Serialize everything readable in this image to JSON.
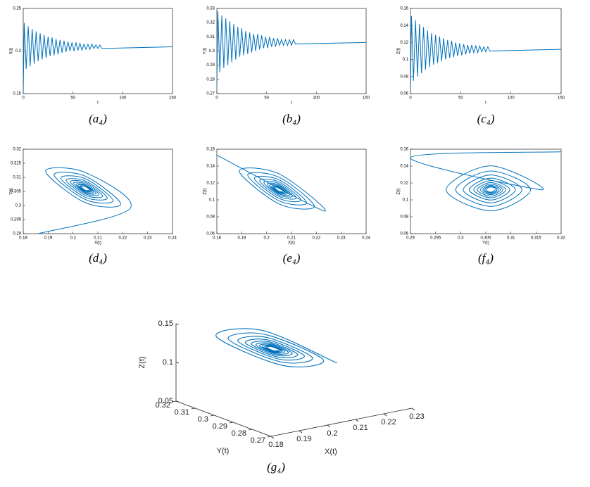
{
  "chart_data": [
    {
      "type": "line",
      "caption": "(a₄)",
      "xlabel": "t",
      "ylabel": "X(t)",
      "color": "#0072bd",
      "smooth": false,
      "xlim": [
        0,
        150
      ],
      "xticks": [
        0,
        50,
        100,
        150
      ],
      "ylim": [
        0.15,
        0.25
      ],
      "yticks": [
        0.15,
        0.2,
        0.25
      ],
      "x": [
        0,
        1,
        3,
        5,
        7,
        9,
        11,
        13,
        15,
        17,
        19,
        21,
        23,
        25,
        27,
        29,
        31,
        33,
        35,
        37,
        39,
        41,
        43,
        45,
        47,
        49,
        51,
        53,
        55,
        57,
        59,
        61,
        63,
        65,
        67,
        69,
        71,
        73,
        75,
        77,
        79,
        150
      ],
      "values": [
        0.15,
        0.233,
        0.179,
        0.229,
        0.182,
        0.226,
        0.185,
        0.223,
        0.188,
        0.221,
        0.19,
        0.219,
        0.192,
        0.217,
        0.194,
        0.216,
        0.195,
        0.214,
        0.196,
        0.213,
        0.198,
        0.212,
        0.199,
        0.211,
        0.2,
        0.21,
        0.2,
        0.21,
        0.201,
        0.209,
        0.201,
        0.208,
        0.202,
        0.208,
        0.202,
        0.208,
        0.203,
        0.207,
        0.203,
        0.207,
        0.203,
        0.205
      ]
    },
    {
      "type": "line",
      "caption": "(b₄)",
      "xlabel": "t",
      "ylabel": "Y(t)",
      "color": "#0072bd",
      "smooth": false,
      "xlim": [
        0,
        150
      ],
      "xticks": [
        0,
        50,
        100,
        150
      ],
      "ylim": [
        0.27,
        0.33
      ],
      "yticks": [
        0.27,
        0.28,
        0.29,
        0.3,
        0.31,
        0.32,
        0.33
      ],
      "x": [
        0,
        1,
        3,
        5,
        7,
        9,
        11,
        13,
        15,
        17,
        19,
        21,
        23,
        25,
        27,
        29,
        31,
        33,
        35,
        37,
        39,
        41,
        43,
        45,
        47,
        49,
        51,
        53,
        55,
        57,
        59,
        61,
        63,
        65,
        67,
        69,
        71,
        73,
        75,
        77,
        79,
        150
      ],
      "values": [
        0.275,
        0.328,
        0.285,
        0.325,
        0.288,
        0.323,
        0.29,
        0.321,
        0.292,
        0.319,
        0.294,
        0.317,
        0.296,
        0.316,
        0.297,
        0.314,
        0.298,
        0.313,
        0.299,
        0.312,
        0.3,
        0.312,
        0.301,
        0.311,
        0.302,
        0.31,
        0.302,
        0.31,
        0.303,
        0.309,
        0.303,
        0.309,
        0.304,
        0.308,
        0.304,
        0.308,
        0.304,
        0.308,
        0.304,
        0.308,
        0.305,
        0.306
      ]
    },
    {
      "type": "line",
      "caption": "(c₄)",
      "xlabel": "t",
      "ylabel": "Z(t)",
      "color": "#0072bd",
      "smooth": false,
      "xlim": [
        0,
        150
      ],
      "xticks": [
        0,
        50,
        100,
        150
      ],
      "ylim": [
        0.06,
        0.16
      ],
      "yticks": [
        0.06,
        0.08,
        0.1,
        0.12,
        0.14,
        0.16
      ],
      "x": [
        0,
        1,
        3,
        5,
        7,
        9,
        11,
        13,
        15,
        17,
        19,
        21,
        23,
        25,
        27,
        29,
        31,
        33,
        35,
        37,
        39,
        41,
        43,
        45,
        47,
        49,
        51,
        53,
        55,
        57,
        59,
        61,
        63,
        65,
        67,
        69,
        71,
        73,
        75,
        77,
        79,
        150
      ],
      "values": [
        0.06,
        0.151,
        0.075,
        0.146,
        0.08,
        0.142,
        0.084,
        0.138,
        0.088,
        0.134,
        0.091,
        0.131,
        0.094,
        0.129,
        0.096,
        0.127,
        0.098,
        0.125,
        0.1,
        0.123,
        0.102,
        0.122,
        0.103,
        0.12,
        0.104,
        0.119,
        0.105,
        0.118,
        0.106,
        0.117,
        0.107,
        0.117,
        0.108,
        0.116,
        0.108,
        0.116,
        0.109,
        0.115,
        0.109,
        0.115,
        0.11,
        0.112
      ]
    },
    {
      "type": "line",
      "caption": "(d₄)",
      "xlabel": "X(t)",
      "ylabel": "Y(t)",
      "color": "#0072bd",
      "smooth": true,
      "xlim": [
        0.18,
        0.24
      ],
      "xticks": [
        0.18,
        0.19,
        0.2,
        0.21,
        0.22,
        0.23,
        0.24
      ],
      "ylim": [
        0.29,
        0.32
      ],
      "yticks": [
        0.29,
        0.295,
        0.3,
        0.305,
        0.31,
        0.315,
        0.32
      ],
      "x": [
        0.186,
        0.223,
        0.205,
        0.189,
        0.205,
        0.2192,
        0.205,
        0.1924,
        0.205,
        0.2161,
        0.205,
        0.1951,
        0.205,
        0.2138,
        0.205,
        0.1972,
        0.205,
        0.2119,
        0.205,
        0.1989,
        0.205,
        0.2104,
        0.205,
        0.2002,
        0.205,
        0.2093,
        0.205,
        0.2012,
        0.205,
        0.2083,
        0.205,
        0.202,
        0.205,
        0.2076,
        0.205,
        0.2027,
        0.205,
        0.2071,
        0.205,
        0.2032,
        0.205,
        0.2066
      ],
      "values": [
        0.29,
        0.299,
        0.3117,
        0.3122,
        0.301,
        0.3005,
        0.3104,
        0.3109,
        0.3021,
        0.3017,
        0.3095,
        0.3098,
        0.3029,
        0.3026,
        0.3087,
        0.309,
        0.3036,
        0.3033,
        0.3082,
        0.3084,
        0.3041,
        0.3039,
        0.3077,
        0.3079,
        0.3045,
        0.3043,
        0.3073,
        0.3075,
        0.3048,
        0.3047,
        0.3071,
        0.3072,
        0.3051,
        0.305,
        0.3068,
        0.3069,
        0.3053,
        0.3052,
        0.3067,
        0.3067,
        0.3054,
        0.3054
      ]
    },
    {
      "type": "line",
      "caption": "(e₄)",
      "xlabel": "X(t)",
      "ylabel": "Z(t)",
      "color": "#0072bd",
      "smooth": true,
      "xlim": [
        0.18,
        0.24
      ],
      "xticks": [
        0.18,
        0.19,
        0.2,
        0.21,
        0.22,
        0.23,
        0.24
      ],
      "ylim": [
        0.06,
        0.16
      ],
      "yticks": [
        0.06,
        0.08,
        0.1,
        0.12,
        0.14,
        0.16
      ],
      "x": [
        0.18,
        0.223,
        0.205,
        0.189,
        0.205,
        0.2192,
        0.205,
        0.1924,
        0.205,
        0.2161,
        0.205,
        0.1951,
        0.205,
        0.2138,
        0.205,
        0.1972,
        0.205,
        0.2119,
        0.205,
        0.1989,
        0.205,
        0.2104,
        0.205,
        0.2002,
        0.205,
        0.2093,
        0.205,
        0.2012,
        0.205,
        0.2083,
        0.205,
        0.202,
        0.205,
        0.2076,
        0.205,
        0.2027,
        0.205,
        0.2071,
        0.205,
        0.2032,
        0.205,
        0.2066
      ],
      "values": [
        0.153,
        0.087,
        0.1308,
        0.1342,
        0.0953,
        0.0923,
        0.1268,
        0.1295,
        0.0989,
        0.0965,
        0.1237,
        0.1257,
        0.1017,
        0.0998,
        0.1212,
        0.1228,
        0.1039,
        0.1024,
        0.1192,
        0.1205,
        0.1056,
        0.1045,
        0.1177,
        0.1187,
        0.107,
        0.1061,
        0.1165,
        0.1173,
        0.108,
        0.1074,
        0.1155,
        0.1161,
        0.1089,
        0.1083,
        0.1148,
        0.1153,
        0.1096,
        0.1091,
        0.1142,
        0.1146,
        0.1101,
        0.1097
      ]
    },
    {
      "type": "line",
      "caption": "(f₄)",
      "xlabel": "Y(t)",
      "ylabel": "Z(t)",
      "color": "#0072bd",
      "smooth": true,
      "xlim": [
        0.29,
        0.32
      ],
      "xticks": [
        0.29,
        0.295,
        0.3,
        0.305,
        0.31,
        0.315,
        0.32
      ],
      "ylim": [
        0.06,
        0.16
      ],
      "yticks": [
        0.06,
        0.08,
        0.1,
        0.12,
        0.14,
        0.16
      ],
      "x": [
        0.32,
        0.29,
        0.316,
        0.306,
        0.2971,
        0.306,
        0.3139,
        0.306,
        0.299,
        0.306,
        0.3122,
        0.306,
        0.3005,
        0.306,
        0.3109,
        0.306,
        0.3017,
        0.306,
        0.3098,
        0.306,
        0.3026,
        0.306,
        0.309,
        0.306,
        0.3033,
        0.306,
        0.3084,
        0.306,
        0.3039,
        0.306,
        0.3079,
        0.306,
        0.3044,
        0.306,
        0.3075,
        0.306,
        0.3047,
        0.306,
        0.3072,
        0.306,
        0.305,
        0.306,
        0.3069
      ],
      "values": [
        0.157,
        0.15,
        0.112,
        0.1403,
        0.112,
        0.087,
        0.112,
        0.1342,
        0.112,
        0.0923,
        0.112,
        0.1295,
        0.112,
        0.0965,
        0.112,
        0.1257,
        0.112,
        0.0998,
        0.112,
        0.1228,
        0.112,
        0.1024,
        0.112,
        0.1205,
        0.112,
        0.1044,
        0.112,
        0.1187,
        0.112,
        0.1061,
        0.112,
        0.1173,
        0.112,
        0.1073,
        0.112,
        0.1161,
        0.112,
        0.1083,
        0.112,
        0.1153,
        0.112,
        0.1091,
        0.112
      ]
    },
    {
      "type": "line3d",
      "caption": "(g₄)",
      "xlabel": "X(t)",
      "ylabel": "Y(t)",
      "zlabel": "Z(t)",
      "color": "#0072bd",
      "smooth": true,
      "xlim": [
        0.18,
        0.23
      ],
      "xticks": [
        0.18,
        0.19,
        0.2,
        0.21,
        0.22,
        0.23
      ],
      "ylim": [
        0.27,
        0.32
      ],
      "yticks": [
        0.27,
        0.28,
        0.29,
        0.3,
        0.31,
        0.32
      ],
      "zlim": [
        0.05,
        0.15
      ],
      "zticks": [
        0.05,
        0.1,
        0.15
      ],
      "x": [
        0.223,
        0.205,
        0.189,
        0.205,
        0.2192,
        0.205,
        0.1924,
        0.205,
        0.2161,
        0.205,
        0.1951,
        0.205,
        0.2138,
        0.205,
        0.1972,
        0.205,
        0.2119,
        0.205,
        0.1989,
        0.205,
        0.2104,
        0.205,
        0.2002,
        0.205,
        0.2093,
        0.205,
        0.2012,
        0.205,
        0.2083,
        0.205,
        0.202,
        0.205,
        0.2076,
        0.205,
        0.2027,
        0.205,
        0.2071,
        0.205,
        0.2032,
        0.205,
        0.2066
      ],
      "y": [
        0.299,
        0.3117,
        0.3122,
        0.301,
        0.3005,
        0.3104,
        0.3109,
        0.3021,
        0.3017,
        0.3095,
        0.3098,
        0.3029,
        0.3026,
        0.3087,
        0.309,
        0.3036,
        0.3033,
        0.3082,
        0.3084,
        0.3041,
        0.3039,
        0.3077,
        0.3079,
        0.3045,
        0.3043,
        0.3073,
        0.3075,
        0.3048,
        0.3047,
        0.3071,
        0.3072,
        0.3051,
        0.305,
        0.3068,
        0.3069,
        0.3053,
        0.3052,
        0.3067,
        0.3067,
        0.3054,
        0.3054
      ],
      "z": [
        0.087,
        0.1308,
        0.1342,
        0.0953,
        0.0923,
        0.1268,
        0.1295,
        0.0989,
        0.0965,
        0.1237,
        0.1257,
        0.1017,
        0.0998,
        0.1212,
        0.1228,
        0.1039,
        0.1024,
        0.1192,
        0.1205,
        0.1056,
        0.1045,
        0.1177,
        0.1187,
        0.107,
        0.1061,
        0.1165,
        0.1173,
        0.108,
        0.1074,
        0.1155,
        0.1161,
        0.1089,
        0.1083,
        0.1148,
        0.1153,
        0.1096,
        0.1091,
        0.1142,
        0.1146,
        0.1101,
        0.1097
      ]
    }
  ]
}
